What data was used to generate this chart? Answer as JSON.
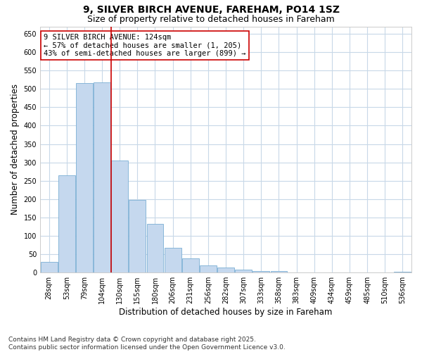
{
  "title": "9, SILVER BIRCH AVENUE, FAREHAM, PO14 1SZ",
  "subtitle": "Size of property relative to detached houses in Fareham",
  "xlabel": "Distribution of detached houses by size in Fareham",
  "ylabel": "Number of detached properties",
  "categories": [
    "28sqm",
    "53sqm",
    "79sqm",
    "104sqm",
    "130sqm",
    "155sqm",
    "180sqm",
    "206sqm",
    "231sqm",
    "256sqm",
    "282sqm",
    "307sqm",
    "333sqm",
    "358sqm",
    "383sqm",
    "409sqm",
    "434sqm",
    "459sqm",
    "485sqm",
    "510sqm",
    "536sqm"
  ],
  "values": [
    30,
    265,
    515,
    518,
    305,
    198,
    132,
    67,
    38,
    20,
    13,
    8,
    5,
    4,
    1,
    0,
    1,
    0,
    0,
    0,
    3
  ],
  "bar_color": "#c5d8ee",
  "bar_edge_color": "#7bafd4",
  "vline_x": 4.0,
  "vline_color": "#cc0000",
  "annotation_text": "9 SILVER BIRCH AVENUE: 124sqm\n← 57% of detached houses are smaller (1, 205)\n43% of semi-detached houses are larger (899) →",
  "annotation_box_color": "#ffffff",
  "annotation_box_edge": "#cc0000",
  "ylim": [
    0,
    670
  ],
  "yticks": [
    0,
    50,
    100,
    150,
    200,
    250,
    300,
    350,
    400,
    450,
    500,
    550,
    600,
    650
  ],
  "background_color": "#ffffff",
  "grid_color": "#c8d8e8",
  "footer_line1": "Contains HM Land Registry data © Crown copyright and database right 2025.",
  "footer_line2": "Contains public sector information licensed under the Open Government Licence v3.0.",
  "title_fontsize": 10,
  "subtitle_fontsize": 9,
  "tick_fontsize": 7,
  "label_fontsize": 8.5,
  "annotation_fontsize": 7.5,
  "footer_fontsize": 6.5
}
